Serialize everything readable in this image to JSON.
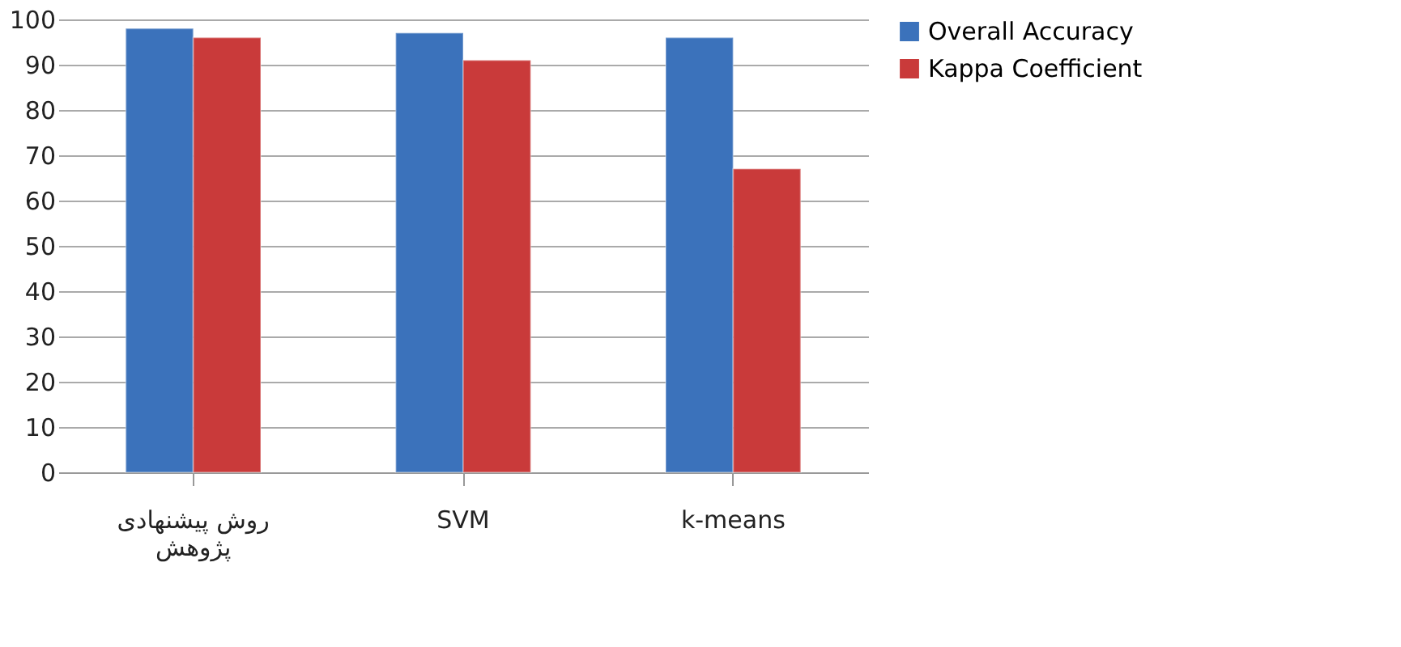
{
  "chart_data": {
    "type": "bar",
    "categories": [
      "روش پیشنهادی پژوهش",
      "SVM",
      "k-means"
    ],
    "series": [
      {
        "name": "Overall Accuracy",
        "color": "#3b72bb",
        "values": [
          98,
          97,
          96
        ]
      },
      {
        "name": "Kappa Coefficient",
        "color": "#c93a3a",
        "values": [
          96,
          91,
          67
        ]
      }
    ],
    "ylim": [
      0,
      100
    ],
    "yticks": [
      0,
      10,
      20,
      30,
      40,
      50,
      60,
      70,
      80,
      90,
      100
    ],
    "grid": "y",
    "legend": "right"
  }
}
